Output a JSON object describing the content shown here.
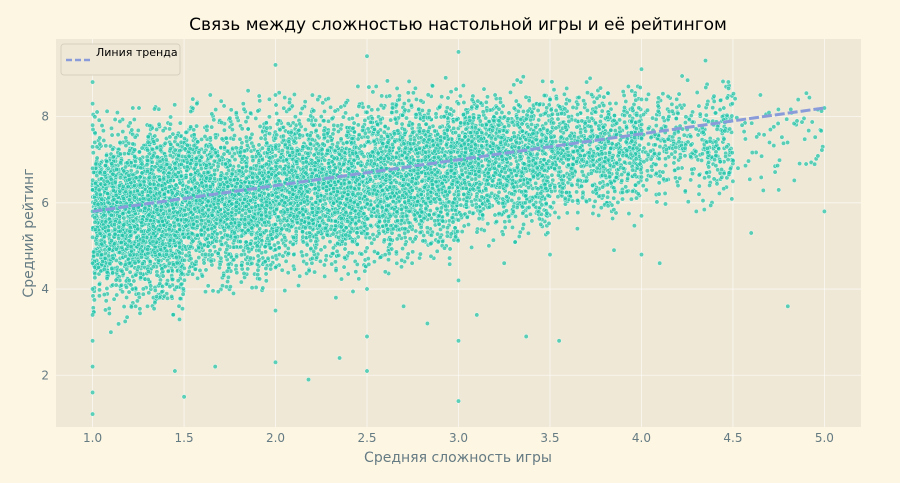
{
  "chart_data": {
    "type": "scatter",
    "title": "Связь между сложностью настольной игры и её рейтингом",
    "xlabel": "Средняя сложность игры",
    "ylabel": "Средний рейтинг",
    "xlim": [
      0.8,
      5.2
    ],
    "ylim": [
      0.8,
      9.8
    ],
    "x_ticks": [
      1.0,
      1.5,
      2.0,
      2.5,
      3.0,
      3.5,
      4.0,
      4.5,
      5.0
    ],
    "x_tick_labels": [
      "1.0",
      "1.5",
      "2.0",
      "2.5",
      "3.0",
      "3.5",
      "4.0",
      "4.5",
      "5.0"
    ],
    "y_ticks": [
      2,
      4,
      6,
      8
    ],
    "y_tick_labels": [
      "2",
      "4",
      "6",
      "8"
    ],
    "grid": true,
    "legend": {
      "placement": "top-left",
      "entries": [
        "Линия тренда"
      ]
    },
    "trend_line": {
      "x": [
        1.0,
        5.0
      ],
      "y": [
        5.8,
        8.2
      ]
    },
    "series": [
      {
        "kind": "scatter",
        "points": [
          [
            1.0,
            1.1
          ],
          [
            1.0,
            1.6
          ],
          [
            1.0,
            2.2
          ],
          [
            1.0,
            2.8
          ],
          [
            1.0,
            3.4
          ],
          [
            1.0,
            4.0
          ],
          [
            1.0,
            4.6
          ],
          [
            1.0,
            5.2
          ],
          [
            1.0,
            5.8
          ],
          [
            1.0,
            6.3
          ],
          [
            1.0,
            6.8
          ],
          [
            1.0,
            7.3
          ],
          [
            1.0,
            7.8
          ],
          [
            1.0,
            8.3
          ],
          [
            1.0,
            8.8
          ],
          [
            1.0,
            9.2
          ],
          [
            1.05,
            4.8
          ],
          [
            1.08,
            6.5
          ],
          [
            1.1,
            3.0
          ],
          [
            1.12,
            5.5
          ],
          [
            1.15,
            7.4
          ],
          [
            1.17,
            6.1
          ],
          [
            1.2,
            4.2
          ],
          [
            1.22,
            8.2
          ],
          [
            1.25,
            5.9
          ],
          [
            1.27,
            6.9
          ],
          [
            1.3,
            3.6
          ],
          [
            1.33,
            5.1
          ],
          [
            1.35,
            7.7
          ],
          [
            1.38,
            6.4
          ],
          [
            1.42,
            4.6
          ],
          [
            1.45,
            2.1
          ],
          [
            1.47,
            7.1
          ],
          [
            1.5,
            1.5
          ],
          [
            1.5,
            5.2
          ],
          [
            1.53,
            6.0
          ],
          [
            1.57,
            8.3
          ],
          [
            1.6,
            4.3
          ],
          [
            1.63,
            6.7
          ],
          [
            1.67,
            2.2
          ],
          [
            1.7,
            5.6
          ],
          [
            1.73,
            7.5
          ],
          [
            1.77,
            3.9
          ],
          [
            1.8,
            6.2
          ],
          [
            1.85,
            8.6
          ],
          [
            1.9,
            5.0
          ],
          [
            1.95,
            6.9
          ],
          [
            2.0,
            2.3
          ],
          [
            2.0,
            3.5
          ],
          [
            2.0,
            4.5
          ],
          [
            2.0,
            5.5
          ],
          [
            2.0,
            6.5
          ],
          [
            2.0,
            7.5
          ],
          [
            2.0,
            8.5
          ],
          [
            2.0,
            9.2
          ],
          [
            2.05,
            6.0
          ],
          [
            2.1,
            4.8
          ],
          [
            2.15,
            7.3
          ],
          [
            2.18,
            1.9
          ],
          [
            2.2,
            5.6
          ],
          [
            2.25,
            8.0
          ],
          [
            2.3,
            6.4
          ],
          [
            2.33,
            3.8
          ],
          [
            2.35,
            2.4
          ],
          [
            2.38,
            7.0
          ],
          [
            2.42,
            5.1
          ],
          [
            2.45,
            8.7
          ],
          [
            2.5,
            2.9
          ],
          [
            2.5,
            2.1
          ],
          [
            2.5,
            4.0
          ],
          [
            2.5,
            5.4
          ],
          [
            2.5,
            6.9
          ],
          [
            2.5,
            8.1
          ],
          [
            2.5,
            9.4
          ],
          [
            2.55,
            6.2
          ],
          [
            2.6,
            4.4
          ],
          [
            2.65,
            7.6
          ],
          [
            2.7,
            3.6
          ],
          [
            2.73,
            5.8
          ],
          [
            2.77,
            8.4
          ],
          [
            2.8,
            6.5
          ],
          [
            2.83,
            3.2
          ],
          [
            2.87,
            7.2
          ],
          [
            2.9,
            5.2
          ],
          [
            2.93,
            8.9
          ],
          [
            2.97,
            6.0
          ],
          [
            3.0,
            1.4
          ],
          [
            3.0,
            2.8
          ],
          [
            3.0,
            4.2
          ],
          [
            3.0,
            5.6
          ],
          [
            3.0,
            7.0
          ],
          [
            3.0,
            8.3
          ],
          [
            3.0,
            9.5
          ],
          [
            3.05,
            6.6
          ],
          [
            3.1,
            3.4
          ],
          [
            3.13,
            7.8
          ],
          [
            3.17,
            5.9
          ],
          [
            3.2,
            8.5
          ],
          [
            3.25,
            4.6
          ],
          [
            3.3,
            7.2
          ],
          [
            3.33,
            6.1
          ],
          [
            3.37,
            2.9
          ],
          [
            3.4,
            8.0
          ],
          [
            3.45,
            5.5
          ],
          [
            3.48,
            7.5
          ],
          [
            3.5,
            4.8
          ],
          [
            3.5,
            6.4
          ],
          [
            3.5,
            8.4
          ],
          [
            3.55,
            2.8
          ],
          [
            3.6,
            7.0
          ],
          [
            3.65,
            5.4
          ],
          [
            3.7,
            8.8
          ],
          [
            3.75,
            6.3
          ],
          [
            3.8,
            7.6
          ],
          [
            3.85,
            4.9
          ],
          [
            3.9,
            6.8
          ],
          [
            3.95,
            8.2
          ],
          [
            4.0,
            4.8
          ],
          [
            4.0,
            5.7
          ],
          [
            4.0,
            6.6
          ],
          [
            4.0,
            7.5
          ],
          [
            4.0,
            8.4
          ],
          [
            4.0,
            9.1
          ],
          [
            4.05,
            7.2
          ],
          [
            4.1,
            4.6
          ],
          [
            4.15,
            8.0
          ],
          [
            4.2,
            6.4
          ],
          [
            4.25,
            7.7
          ],
          [
            4.3,
            5.8
          ],
          [
            4.35,
            9.3
          ],
          [
            4.4,
            7.0
          ],
          [
            4.45,
            8.2
          ],
          [
            4.5,
            6.5
          ],
          [
            4.55,
            7.8
          ],
          [
            4.6,
            5.3
          ],
          [
            4.65,
            8.5
          ],
          [
            4.7,
            7.4
          ],
          [
            4.75,
            6.3
          ],
          [
            4.8,
            3.6
          ],
          [
            4.85,
            7.9
          ],
          [
            4.9,
            6.9
          ],
          [
            5.0,
            5.8
          ],
          [
            5.0,
            8.2
          ]
        ],
        "jitter_clouds": [
          {
            "x": [
              1.0,
              1.5
            ],
            "y": [
              3.2,
              8.2
            ],
            "count": 2200
          },
          {
            "x": [
              1.5,
              2.0
            ],
            "y": [
              3.8,
              8.4
            ],
            "count": 1700
          },
          {
            "x": [
              2.0,
              2.5
            ],
            "y": [
              4.0,
              8.6
            ],
            "count": 1600
          },
          {
            "x": [
              2.5,
              3.0
            ],
            "y": [
              4.4,
              8.8
            ],
            "count": 1500
          },
          {
            "x": [
              3.0,
              3.5
            ],
            "y": [
              5.0,
              8.9
            ],
            "count": 1200
          },
          {
            "x": [
              3.5,
              4.0
            ],
            "y": [
              5.5,
              8.9
            ],
            "count": 800
          },
          {
            "x": [
              4.0,
              4.5
            ],
            "y": [
              5.8,
              9.0
            ],
            "count": 380
          },
          {
            "x": [
              4.5,
              5.0
            ],
            "y": [
              6.0,
              8.9
            ],
            "count": 60
          }
        ]
      }
    ]
  },
  "colors": {
    "page_background": "#fdf6e3",
    "plot_background": "#f0e8d7",
    "points": "#1fc4a8",
    "point_edge": "#ffffff",
    "trend_line": "#8a9bd9",
    "grid": "#ffffff",
    "axis_text": "#657b83"
  }
}
